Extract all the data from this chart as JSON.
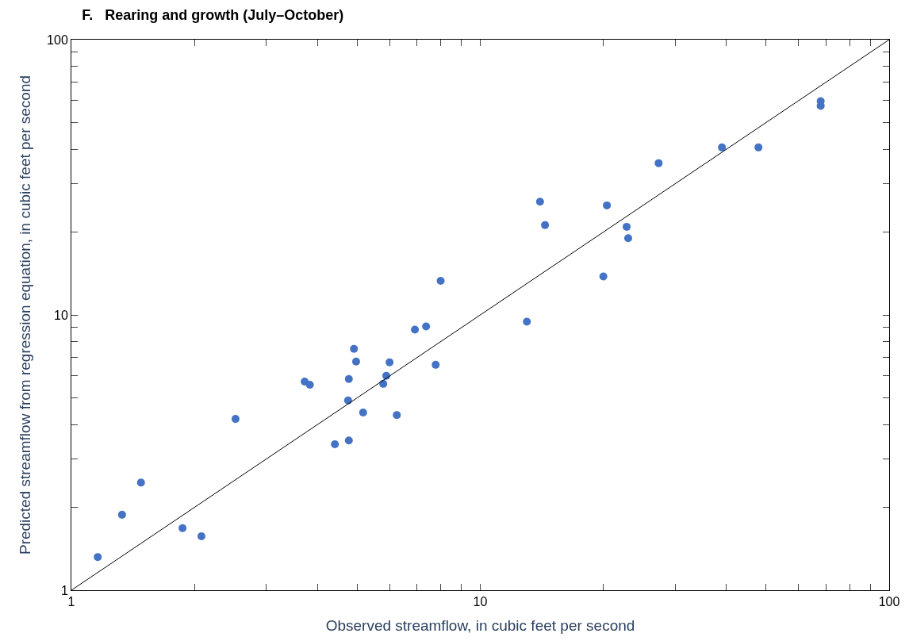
{
  "chart_data": {
    "type": "scatter",
    "title": "F.   Rearing and growth (July–October)",
    "xlabel": "Observed streamflow, in cubic feet per second",
    "ylabel": "Predicted streamflow from regression equation, in cubic feet per second",
    "log": "xy",
    "marker": "circle",
    "xlim": [
      1,
      100
    ],
    "ylim": [
      1,
      100
    ],
    "xticks": [
      1,
      {
        "value": 2,
        "label": null
      },
      {
        "value": 3,
        "label": null
      },
      {
        "value": 4,
        "label": null
      },
      {
        "value": 5,
        "label": null
      },
      {
        "value": 6,
        "label": null
      },
      {
        "value": 7,
        "label": null
      },
      {
        "value": 8,
        "label": null
      },
      {
        "value": 9,
        "label": null
      },
      10,
      {
        "value": 20,
        "label": null
      },
      {
        "value": 30,
        "label": null
      },
      {
        "value": 40,
        "label": null
      },
      {
        "value": 50,
        "label": null
      },
      {
        "value": 60,
        "label": null
      },
      {
        "value": 70,
        "label": null
      },
      {
        "value": 80,
        "label": null
      },
      {
        "value": 90,
        "label": null
      },
      100
    ],
    "yticks": [
      1,
      {
        "value": 2,
        "label": null
      },
      {
        "value": 3,
        "label": null
      },
      {
        "value": 4,
        "label": null
      },
      {
        "value": 5,
        "label": null
      },
      {
        "value": 6,
        "label": null
      },
      {
        "value": 7,
        "label": null
      },
      {
        "value": 8,
        "label": null
      },
      {
        "value": 9,
        "label": null
      },
      10,
      {
        "value": 20,
        "label": null
      },
      {
        "value": 30,
        "label": null
      },
      {
        "value": 40,
        "label": null
      },
      {
        "value": 50,
        "label": null
      },
      {
        "value": 60,
        "label": null
      },
      {
        "value": 70,
        "label": null
      },
      {
        "value": 80,
        "label": null
      },
      {
        "value": 90,
        "label": null
      },
      100
    ],
    "series": [
      {
        "color": "#4472c4",
        "x": [
          1.16,
          1.33,
          1.48,
          1.87,
          2.08,
          2.52,
          3.72,
          3.83,
          4.41,
          4.75,
          4.77,
          4.77,
          4.91,
          4.97,
          5.17,
          5.79,
          5.89,
          6.0,
          6.25,
          6.92,
          7.37,
          7.78,
          8.0,
          13.0,
          14.0,
          14.4,
          20.0,
          20.4,
          22.8,
          23.0,
          27.3,
          39.0,
          47.9,
          68.0,
          68.0
        ],
        "values": [
          1.32,
          1.88,
          2.46,
          1.68,
          1.57,
          4.19,
          5.73,
          5.58,
          3.39,
          4.89,
          3.5,
          5.85,
          7.53,
          6.77,
          4.42,
          5.62,
          6.01,
          6.73,
          4.33,
          8.84,
          9.08,
          6.59,
          13.3,
          9.45,
          25.8,
          21.2,
          13.8,
          25.0,
          20.9,
          19.0,
          35.6,
          40.6,
          40.6,
          59.8,
          57.5
        ]
      },
      {
        "type": "line",
        "color": "#000000",
        "line_style": "solid",
        "marker": "none",
        "x": [
          1,
          100
        ],
        "values": [
          1,
          100
        ]
      }
    ]
  }
}
